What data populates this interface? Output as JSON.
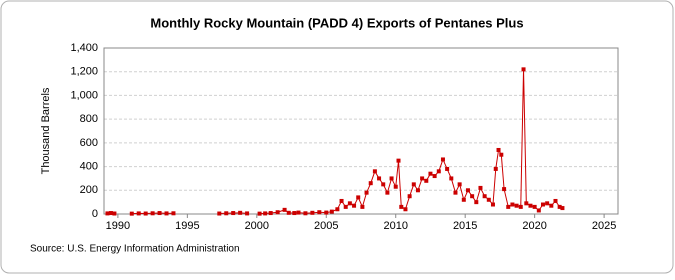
{
  "chart_data": {
    "type": "line",
    "title": "Monthly Rocky Mountain (PADD 4) Exports of Pentanes Plus",
    "y_label": "Thousand Barrels",
    "source": "Source: U.S. Energy Information Administration",
    "x": [
      1989.25,
      1989.5,
      1989.75,
      1990.5,
      1991.0,
      1991.5,
      1992.0,
      1992.5,
      1993.0,
      1993.5,
      1994.0,
      1995.5,
      1997.3,
      1997.8,
      1998.3,
      1998.8,
      1999.3,
      1999.8,
      2000.2,
      2000.6,
      2001.0,
      2001.5,
      2002.0,
      2002.3,
      2002.7,
      2003.0,
      2003.5,
      2004.0,
      2004.5,
      2005.0,
      2005.4,
      2005.8,
      2006.1,
      2006.4,
      2006.7,
      2007.0,
      2007.3,
      2007.6,
      2007.9,
      2008.2,
      2008.5,
      2008.8,
      2009.1,
      2009.4,
      2009.7,
      2010.0,
      2010.2,
      2010.4,
      2010.7,
      2011.0,
      2011.3,
      2011.6,
      2011.9,
      2012.2,
      2012.5,
      2012.8,
      2013.1,
      2013.4,
      2013.7,
      2014.0,
      2014.3,
      2014.6,
      2014.9,
      2015.2,
      2015.5,
      2015.8,
      2016.1,
      2016.4,
      2016.7,
      2017.0,
      2017.2,
      2017.4,
      2017.6,
      2017.8,
      2018.1,
      2018.4,
      2018.7,
      2019.0,
      2019.2,
      2019.4,
      2019.7,
      2020.0,
      2020.3,
      2020.6,
      2020.9,
      2021.2,
      2021.5,
      2021.8,
      2022.0
    ],
    "series": [
      {
        "color": "#cc0000",
        "values": [
          5,
          8,
          4,
          null,
          3,
          5,
          4,
          6,
          8,
          5,
          6,
          null,
          4,
          6,
          8,
          10,
          5,
          null,
          3,
          5,
          8,
          15,
          35,
          10,
          8,
          12,
          6,
          10,
          15,
          12,
          20,
          40,
          110,
          60,
          90,
          70,
          140,
          60,
          180,
          260,
          360,
          300,
          250,
          180,
          300,
          230,
          450,
          60,
          40,
          150,
          250,
          200,
          300,
          280,
          340,
          320,
          360,
          460,
          380,
          300,
          180,
          250,
          120,
          200,
          150,
          100,
          220,
          150,
          120,
          80,
          380,
          540,
          500,
          210,
          60,
          80,
          70,
          60,
          1220,
          90,
          70,
          60,
          30,
          80,
          90,
          70,
          110,
          60,
          50
        ]
      }
    ],
    "xlim": [
      1989,
      2026
    ],
    "xticks": [
      1990,
      1995,
      2000,
      2005,
      2010,
      2015,
      2020,
      2025
    ],
    "ylim": [
      0,
      1400
    ],
    "yticks": [
      0,
      200,
      400,
      600,
      800,
      {
        "value": 1000,
        "label": "1,000"
      },
      {
        "value": 1200,
        "label": "1,200"
      },
      {
        "value": 1400,
        "label": "1,400"
      }
    ],
    "grid": true
  }
}
